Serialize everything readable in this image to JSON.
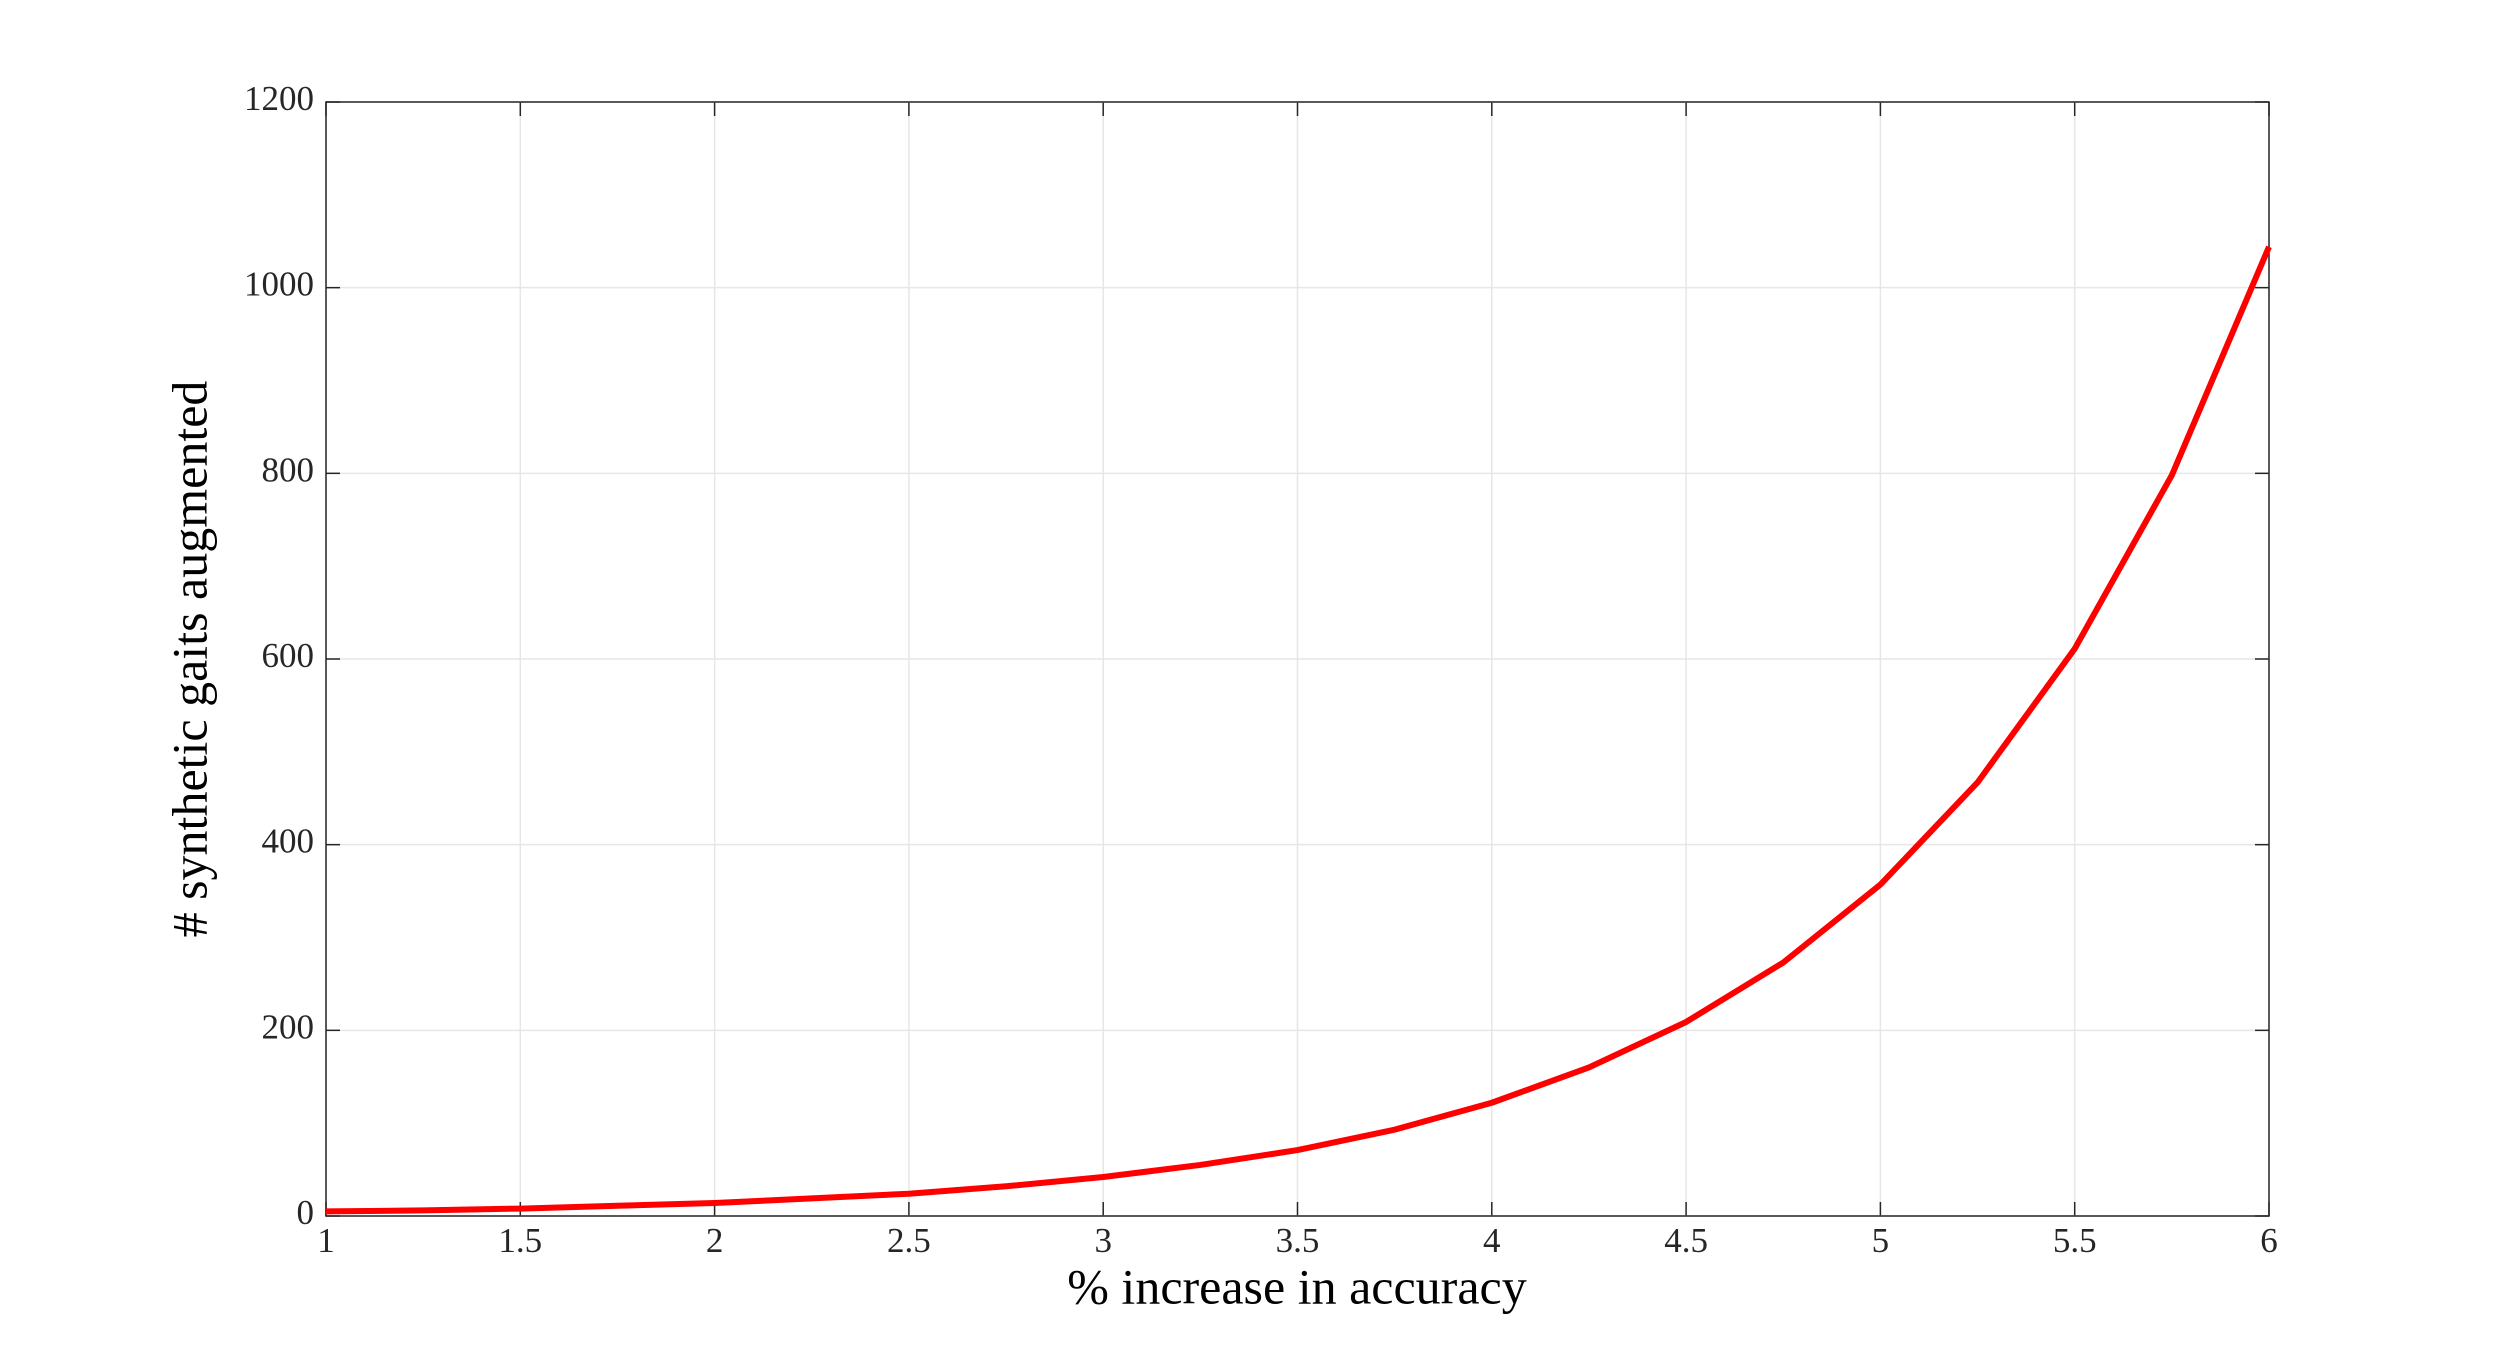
{
  "chart_data": {
    "type": "line",
    "xlabel": "% increase in accuracy",
    "ylabel": "# synthetic gaits augmented",
    "x": [
      1,
      1.25,
      1.5,
      1.75,
      2,
      2.25,
      2.5,
      2.75,
      3,
      3.25,
      3.5,
      3.75,
      4,
      4.25,
      4.5,
      4.75,
      5,
      5.25,
      5.5,
      5.75,
      6
    ],
    "values": [
      5,
      6,
      8,
      11,
      14,
      19,
      24,
      32,
      42,
      55,
      71,
      93,
      122,
      160,
      209,
      273,
      357,
      467,
      611,
      798,
      1044
    ],
    "color": "#ff0000",
    "xlim": [
      1,
      6
    ],
    "xticks": [
      1,
      1.5,
      2,
      2.5,
      3,
      3.5,
      4,
      4.5,
      5,
      5.5,
      6
    ],
    "ylim": [
      0,
      1200
    ],
    "yticks": [
      0,
      200,
      400,
      600,
      800,
      1000,
      1200
    ],
    "grid": true
  }
}
